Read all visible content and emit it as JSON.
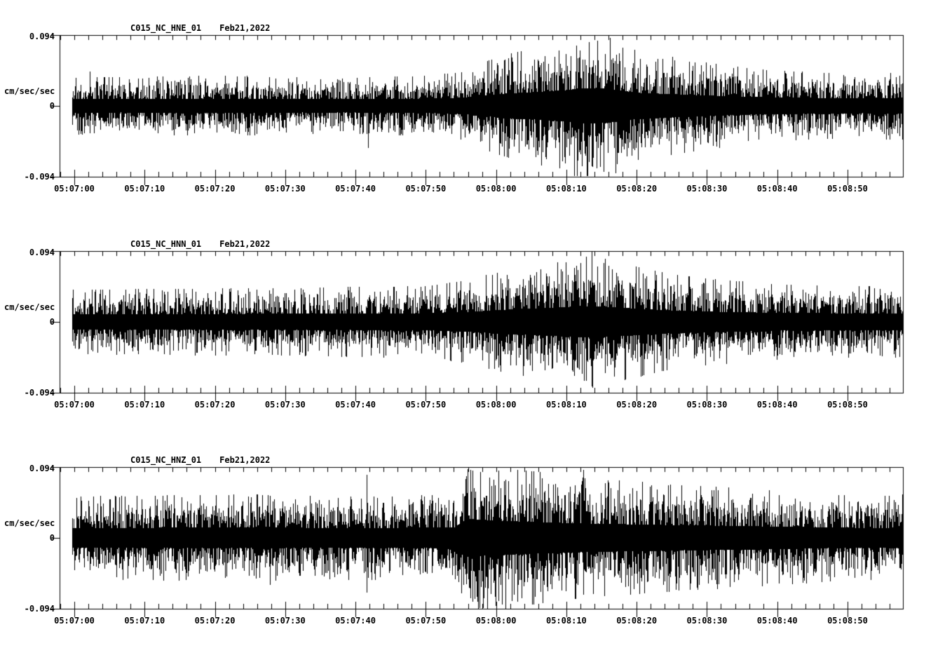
{
  "page": {
    "background_color": "#ffffff",
    "trace_color": "#000000",
    "description": "Three-component strong-motion seismogram record section"
  },
  "chart_data": [
    {
      "type": "line",
      "subtype": "seismogram",
      "station": "C015_NC_HNE_01",
      "date_label": "Feb21,2022",
      "ylabel": "cm/sec/sec",
      "ytick_labels": [
        "0.094",
        "0",
        "-0.094"
      ],
      "ylim": [
        -0.094,
        0.094
      ],
      "time_start_label": "05:07:00",
      "xtick_labels": [
        "05:07:00",
        "05:07:10",
        "05:07:20",
        "05:07:30",
        "05:07:40",
        "05:07:50",
        "05:08:00",
        "05:08:10",
        "05:08:20",
        "05:08:30",
        "05:08:40",
        "05:08:50"
      ],
      "xtick_interval_sec": 10,
      "minor_tick_interval_sec": 2,
      "duration_sec": 118,
      "grid": false,
      "legend": false,
      "envelope_t_sec": [
        -1,
        20,
        40,
        50,
        55,
        58,
        62,
        66,
        70,
        72,
        76,
        80,
        85,
        90,
        96,
        104,
        112,
        118
      ],
      "envelope_amp": [
        0.03,
        0.032,
        0.03,
        0.032,
        0.036,
        0.046,
        0.056,
        0.062,
        0.07,
        0.078,
        0.076,
        0.058,
        0.052,
        0.046,
        0.04,
        0.036,
        0.034,
        0.036
      ],
      "spikes": [
        {
          "t_sec": 2.2,
          "up": 0.046,
          "down": -0.036
        },
        {
          "t_sec": 24.5,
          "up": 0.04,
          "down": -0.03
        },
        {
          "t_sec": 41.8,
          "up": 0.014,
          "down": -0.056
        },
        {
          "t_sec": 73.2,
          "up": 0.085,
          "down": -0.074
        }
      ],
      "seed": 11
    },
    {
      "type": "line",
      "subtype": "seismogram",
      "station": "C015_NC_HNN_01",
      "date_label": "Feb21,2022",
      "ylabel": "cm/sec/sec",
      "ytick_labels": [
        "0.094",
        "0",
        "-0.094"
      ],
      "ylim": [
        -0.094,
        0.094
      ],
      "time_start_label": "05:07:00",
      "xtick_labels": [
        "05:07:00",
        "05:07:10",
        "05:07:20",
        "05:07:30",
        "05:07:40",
        "05:07:50",
        "05:08:00",
        "05:08:10",
        "05:08:20",
        "05:08:30",
        "05:08:40",
        "05:08:50"
      ],
      "xtick_interval_sec": 10,
      "minor_tick_interval_sec": 2,
      "duration_sec": 118,
      "grid": false,
      "legend": false,
      "envelope_t_sec": [
        -1,
        30,
        50,
        56,
        60,
        64,
        68,
        71,
        74,
        78,
        84,
        90,
        100,
        110,
        118
      ],
      "envelope_amp": [
        0.034,
        0.036,
        0.038,
        0.044,
        0.052,
        0.058,
        0.062,
        0.068,
        0.07,
        0.062,
        0.052,
        0.046,
        0.04,
        0.038,
        0.038
      ],
      "spikes": [
        {
          "t_sec": 58.5,
          "up": 0.062,
          "down": -0.04
        },
        {
          "t_sec": 60.6,
          "up": 0.058,
          "down": -0.046
        },
        {
          "t_sec": 73.6,
          "up": 0.094,
          "down": -0.086
        }
      ],
      "seed": 23
    },
    {
      "type": "line",
      "subtype": "seismogram",
      "station": "C015_NC_HNZ_01",
      "date_label": "Feb21,2022",
      "ylabel": "cm/sec/sec",
      "ytick_labels": [
        "0.094",
        "0",
        "-0.094"
      ],
      "ylim": [
        -0.094,
        0.094
      ],
      "time_start_label": "05:07:00",
      "xtick_labels": [
        "05:07:00",
        "05:07:10",
        "05:07:20",
        "05:07:30",
        "05:07:40",
        "05:07:50",
        "05:08:00",
        "05:08:10",
        "05:08:20",
        "05:08:30",
        "05:08:40",
        "05:08:50"
      ],
      "xtick_interval_sec": 10,
      "minor_tick_interval_sec": 2,
      "duration_sec": 118,
      "grid": false,
      "legend": false,
      "envelope_t_sec": [
        -1,
        25,
        40,
        54,
        55.8,
        58,
        62,
        66,
        70,
        74,
        80,
        86,
        92,
        100,
        108,
        114,
        118
      ],
      "envelope_amp": [
        0.044,
        0.046,
        0.044,
        0.046,
        0.084,
        0.08,
        0.074,
        0.07,
        0.066,
        0.062,
        0.06,
        0.056,
        0.054,
        0.05,
        0.046,
        0.044,
        0.046
      ],
      "spikes": [
        {
          "t_sec": 27.8,
          "up": 0.056,
          "down": -0.062
        },
        {
          "t_sec": 41.6,
          "up": 0.084,
          "down": -0.072
        },
        {
          "t_sec": 56.3,
          "up": 0.09,
          "down": -0.08
        },
        {
          "t_sec": 72.4,
          "up": 0.09,
          "down": -0.076
        },
        {
          "t_sec": 84.5,
          "up": 0.07,
          "down": -0.05
        }
      ],
      "seed": 37
    }
  ]
}
